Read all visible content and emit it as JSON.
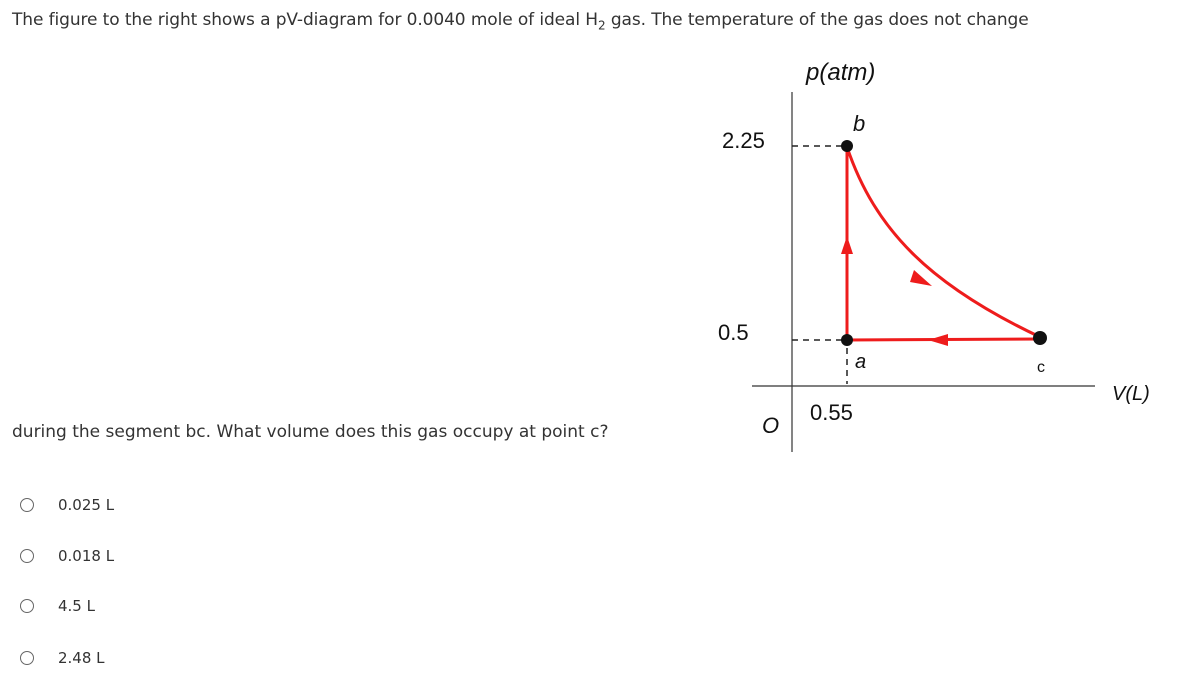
{
  "question": {
    "line1_before": "The figure to the right shows a pV-diagram for 0.0040 mole of ideal H",
    "line1_subscript": "2",
    "line1_after": " gas. The temperature of the gas does not change",
    "line2": "during the segment bc. What volume does this gas occupy at point c?"
  },
  "diagram": {
    "y_axis_label": "p(atm)",
    "x_axis_label": "V(L)",
    "origin_label": "O",
    "p_high": "2.25",
    "p_low": "0.5",
    "v_a": "0.55",
    "point_a": "a",
    "point_b": "b",
    "point_c": "c"
  },
  "options": [
    "0.025 L",
    "0.018 L",
    "4.5 L",
    "2.48 L"
  ]
}
